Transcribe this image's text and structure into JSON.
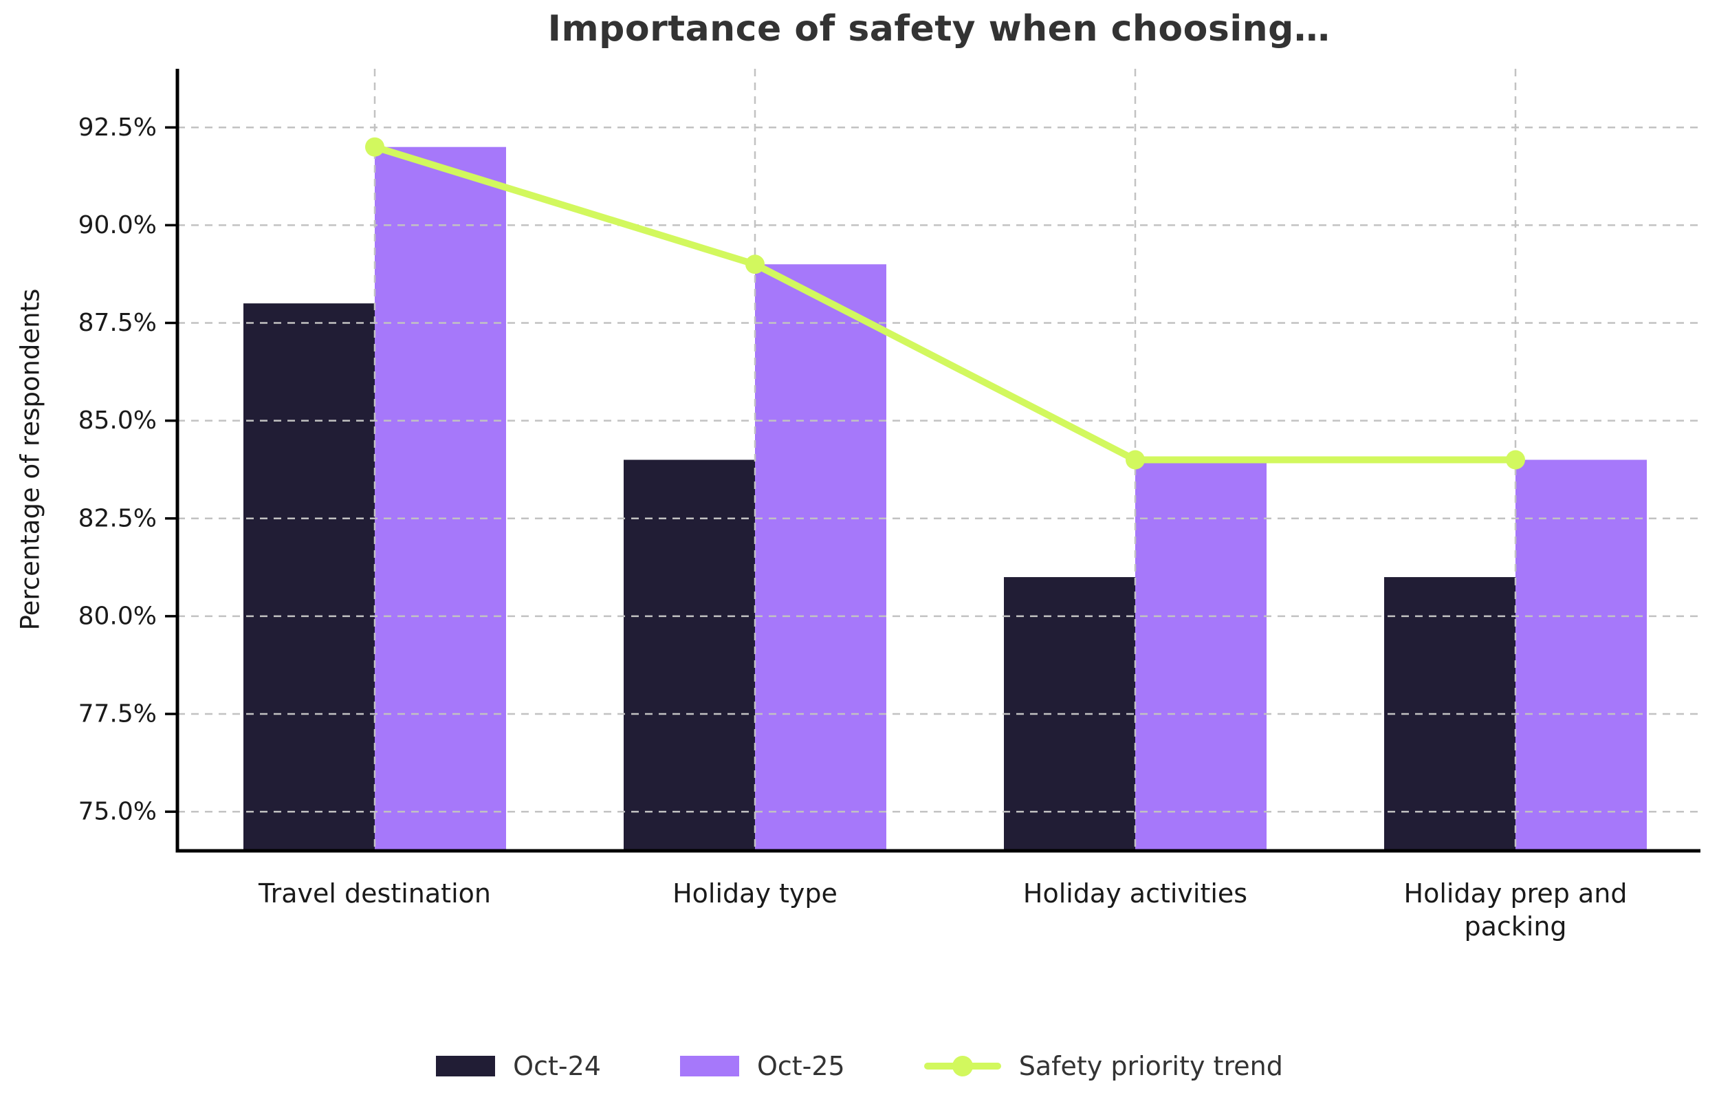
{
  "chart_data": {
    "type": "bar",
    "title": "Importance of safety when choosing…",
    "ylabel": "Percentage of respondents",
    "categories": [
      "Travel destination",
      "Holiday type",
      "Holiday activities",
      "Holiday prep and packing"
    ],
    "series": [
      {
        "name": "Oct-24",
        "color": "#211d35",
        "values": [
          88,
          84,
          81,
          81
        ]
      },
      {
        "name": "Oct-25",
        "color": "#a678fa",
        "values": [
          92,
          89,
          84,
          84
        ]
      }
    ],
    "line": {
      "name": "Safety priority trend",
      "color": "#d2f85e",
      "values": [
        92,
        89,
        84,
        84
      ]
    },
    "yticks": {
      "values": [
        75,
        77.5,
        80,
        82.5,
        85,
        87.5,
        90,
        92.5
      ],
      "labels": [
        "75.0%",
        "77.5%",
        "80.0%",
        "82.5%",
        "85.0%",
        "87.5%",
        "90.0%",
        "92.5%"
      ]
    },
    "ylim": [
      74,
      94
    ],
    "grid": true,
    "legend_position": "bottom"
  },
  "colors": {
    "background": "#ffffff",
    "grid": "#c2c2c2",
    "spine": "#000000",
    "text": "#1a1a1a",
    "title": "#333333"
  }
}
